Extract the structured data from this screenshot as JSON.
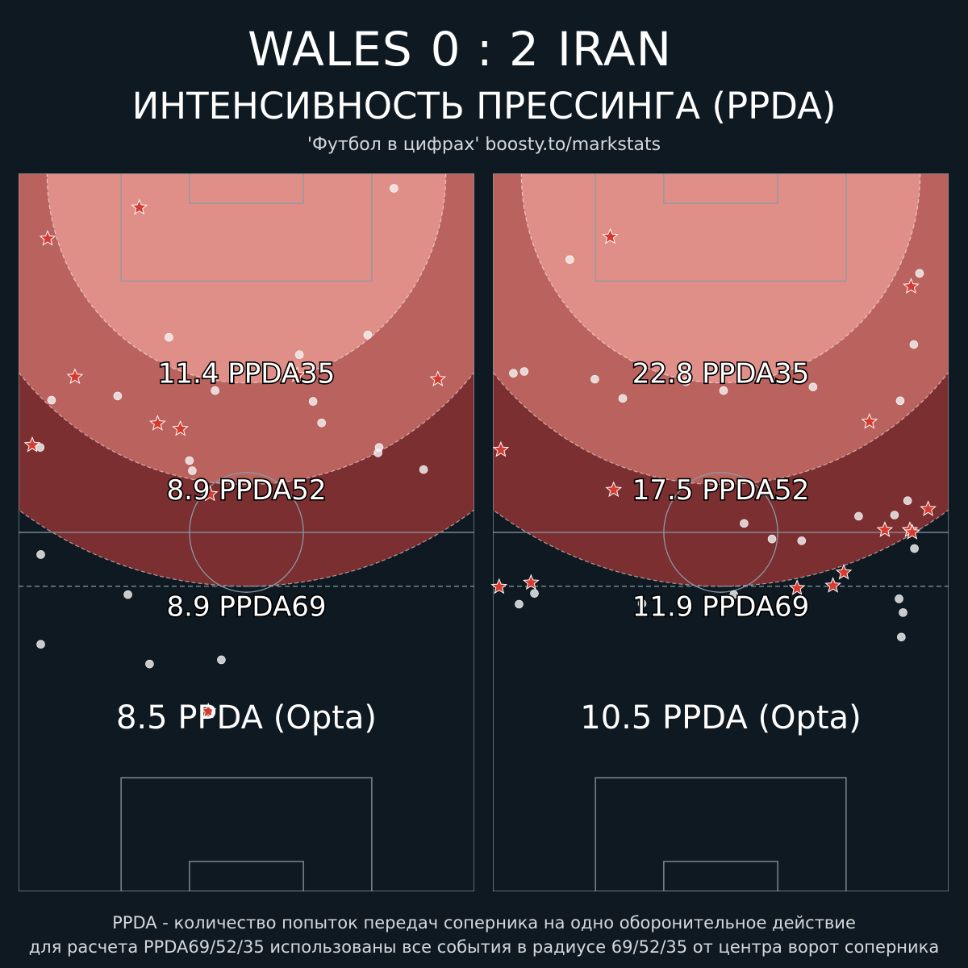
{
  "header": {
    "home_team": "WALES",
    "home_score": "0",
    "separator": ":",
    "away_score": "2",
    "away_team": "IRAN",
    "subtitle": "ИНТЕНСИВНОСТЬ ПРЕССИНГА (PPDA)",
    "credit": "'Футбол в цифрах' boosty.to/markstats"
  },
  "footer": {
    "line1": "PPDA - количество попыток передач соперника на одно оборонительное действие",
    "line2": "для расчета PPDA69/52/35 использованы все события в радиусе 69/52/35 от центра ворот соперника"
  },
  "colors": {
    "background": "#0e1921",
    "zone_35": "#e08f88",
    "zone_52": "#b9625e",
    "zone_69": "#7b2f31",
    "pitch_lines": "#8a9aa3",
    "marker_star": "#d63b30",
    "marker_dot": "#f2f2f2"
  },
  "chart_data": [
    {
      "type": "scatter",
      "panel": "left",
      "metrics": [
        {
          "value": 11.4,
          "label": "11.4 PPDA35",
          "radius": 35
        },
        {
          "value": 8.9,
          "label": "8.9 PPDA52",
          "radius": 52
        },
        {
          "value": 8.9,
          "label": "8.9 PPDA69",
          "radius": 69
        }
      ],
      "opta": {
        "value": 8.5,
        "label": "8.5 PPDA (Opta)"
      },
      "xlim": [
        0,
        80
      ],
      "ylim": [
        0,
        120
      ],
      "defensive_actions": [
        [
          21.2,
          114.3
        ],
        [
          5.1,
          109.1
        ],
        [
          9.9,
          86.0
        ],
        [
          48.9,
          86.3
        ],
        [
          73.6,
          85.6
        ],
        [
          24.4,
          78.2
        ],
        [
          28.4,
          77.3
        ],
        [
          2.4,
          74.6
        ],
        [
          33.6,
          66.4
        ],
        [
          33.3,
          30.1
        ]
      ],
      "opponent_passes": [
        [
          65.9,
          117.5
        ],
        [
          26.4,
          92.6
        ],
        [
          61.3,
          93.0
        ],
        [
          49.3,
          89.7
        ],
        [
          53.2,
          78.3
        ],
        [
          51.7,
          81.9
        ],
        [
          5.8,
          82.1
        ],
        [
          17.4,
          82.8
        ],
        [
          34.5,
          83.7
        ],
        [
          63.1,
          73.3
        ],
        [
          71.1,
          70.5
        ],
        [
          30.0,
          72.0
        ],
        [
          3.8,
          74.2
        ],
        [
          30.5,
          70.3
        ],
        [
          3.9,
          56.3
        ],
        [
          19.2,
          49.6
        ],
        [
          3.9,
          41.3
        ],
        [
          23.0,
          38.0
        ],
        [
          35.6,
          38.7
        ],
        [
          63.3,
          74.2
        ]
      ]
    },
    {
      "type": "scatter",
      "panel": "right",
      "metrics": [
        {
          "value": 22.8,
          "label": "22.8 PPDA35",
          "radius": 35
        },
        {
          "value": 17.5,
          "label": "17.5 PPDA52",
          "radius": 52
        },
        {
          "value": 11.9,
          "label": "11.9 PPDA69",
          "radius": 69
        }
      ],
      "opta": {
        "value": 10.5,
        "label": "10.5 PPDA (Opta)"
      },
      "xlim": [
        0,
        80
      ],
      "ylim": [
        0,
        120
      ],
      "defensive_actions": [
        [
          20.6,
          109.4
        ],
        [
          73.4,
          101.1
        ],
        [
          66.1,
          78.5
        ],
        [
          1.4,
          73.8
        ],
        [
          21.2,
          67.1
        ],
        [
          76.4,
          63.9
        ],
        [
          68.8,
          60.4
        ],
        [
          73.2,
          60.4
        ],
        [
          73.6,
          60.0
        ],
        [
          61.6,
          53.3
        ],
        [
          6.7,
          51.6
        ],
        [
          1.1,
          50.9
        ],
        [
          53.4,
          50.7
        ],
        [
          59.7,
          51.1
        ]
      ],
      "opponent_passes": [
        [
          13.5,
          105.6
        ],
        [
          74.9,
          103.3
        ],
        [
          73.9,
          91.4
        ],
        [
          3.6,
          86.6
        ],
        [
          5.5,
          86.9
        ],
        [
          17.9,
          85.6
        ],
        [
          33.9,
          85.2
        ],
        [
          40.5,
          83.7
        ],
        [
          56.2,
          84.3
        ],
        [
          22.8,
          82.4
        ],
        [
          71.5,
          82.0
        ],
        [
          72.8,
          65.3
        ],
        [
          64.2,
          62.7
        ],
        [
          70.5,
          62.9
        ],
        [
          44.1,
          61.5
        ],
        [
          49.0,
          58.9
        ],
        [
          54.2,
          58.6
        ],
        [
          74.0,
          57.3
        ],
        [
          7.3,
          49.8
        ],
        [
          4.6,
          48.0
        ],
        [
          26.2,
          48.1
        ],
        [
          71.3,
          48.9
        ],
        [
          72.0,
          46.6
        ],
        [
          71.7,
          42.5
        ],
        [
          42.3,
          49.6
        ]
      ]
    }
  ]
}
